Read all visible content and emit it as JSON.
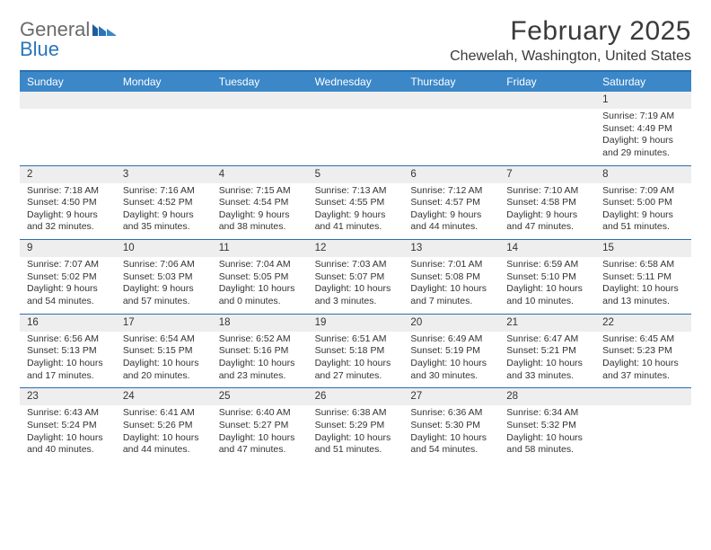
{
  "brand": {
    "name1": "General",
    "name2": "Blue"
  },
  "title": "February 2025",
  "location": "Chewelah, Washington, United States",
  "colors": {
    "header_bg": "#3b87c8",
    "rule": "#2a6fb0",
    "daynum_bg": "#eeeeee",
    "text": "#333333",
    "logo_gray": "#6b6b6b",
    "logo_blue": "#2a75bb"
  },
  "day_names": [
    "Sunday",
    "Monday",
    "Tuesday",
    "Wednesday",
    "Thursday",
    "Friday",
    "Saturday"
  ],
  "weeks": [
    {
      "nums": [
        "",
        "",
        "",
        "",
        "",
        "",
        "1"
      ],
      "cells": [
        null,
        null,
        null,
        null,
        null,
        null,
        {
          "sunrise": "7:19 AM",
          "sunset": "4:49 PM",
          "daylight": "9 hours and 29 minutes."
        }
      ]
    },
    {
      "nums": [
        "2",
        "3",
        "4",
        "5",
        "6",
        "7",
        "8"
      ],
      "cells": [
        {
          "sunrise": "7:18 AM",
          "sunset": "4:50 PM",
          "daylight": "9 hours and 32 minutes."
        },
        {
          "sunrise": "7:16 AM",
          "sunset": "4:52 PM",
          "daylight": "9 hours and 35 minutes."
        },
        {
          "sunrise": "7:15 AM",
          "sunset": "4:54 PM",
          "daylight": "9 hours and 38 minutes."
        },
        {
          "sunrise": "7:13 AM",
          "sunset": "4:55 PM",
          "daylight": "9 hours and 41 minutes."
        },
        {
          "sunrise": "7:12 AM",
          "sunset": "4:57 PM",
          "daylight": "9 hours and 44 minutes."
        },
        {
          "sunrise": "7:10 AM",
          "sunset": "4:58 PM",
          "daylight": "9 hours and 47 minutes."
        },
        {
          "sunrise": "7:09 AM",
          "sunset": "5:00 PM",
          "daylight": "9 hours and 51 minutes."
        }
      ]
    },
    {
      "nums": [
        "9",
        "10",
        "11",
        "12",
        "13",
        "14",
        "15"
      ],
      "cells": [
        {
          "sunrise": "7:07 AM",
          "sunset": "5:02 PM",
          "daylight": "9 hours and 54 minutes."
        },
        {
          "sunrise": "7:06 AM",
          "sunset": "5:03 PM",
          "daylight": "9 hours and 57 minutes."
        },
        {
          "sunrise": "7:04 AM",
          "sunset": "5:05 PM",
          "daylight": "10 hours and 0 minutes."
        },
        {
          "sunrise": "7:03 AM",
          "sunset": "5:07 PM",
          "daylight": "10 hours and 3 minutes."
        },
        {
          "sunrise": "7:01 AM",
          "sunset": "5:08 PM",
          "daylight": "10 hours and 7 minutes."
        },
        {
          "sunrise": "6:59 AM",
          "sunset": "5:10 PM",
          "daylight": "10 hours and 10 minutes."
        },
        {
          "sunrise": "6:58 AM",
          "sunset": "5:11 PM",
          "daylight": "10 hours and 13 minutes."
        }
      ]
    },
    {
      "nums": [
        "16",
        "17",
        "18",
        "19",
        "20",
        "21",
        "22"
      ],
      "cells": [
        {
          "sunrise": "6:56 AM",
          "sunset": "5:13 PM",
          "daylight": "10 hours and 17 minutes."
        },
        {
          "sunrise": "6:54 AM",
          "sunset": "5:15 PM",
          "daylight": "10 hours and 20 minutes."
        },
        {
          "sunrise": "6:52 AM",
          "sunset": "5:16 PM",
          "daylight": "10 hours and 23 minutes."
        },
        {
          "sunrise": "6:51 AM",
          "sunset": "5:18 PM",
          "daylight": "10 hours and 27 minutes."
        },
        {
          "sunrise": "6:49 AM",
          "sunset": "5:19 PM",
          "daylight": "10 hours and 30 minutes."
        },
        {
          "sunrise": "6:47 AM",
          "sunset": "5:21 PM",
          "daylight": "10 hours and 33 minutes."
        },
        {
          "sunrise": "6:45 AM",
          "sunset": "5:23 PM",
          "daylight": "10 hours and 37 minutes."
        }
      ]
    },
    {
      "nums": [
        "23",
        "24",
        "25",
        "26",
        "27",
        "28",
        ""
      ],
      "cells": [
        {
          "sunrise": "6:43 AM",
          "sunset": "5:24 PM",
          "daylight": "10 hours and 40 minutes."
        },
        {
          "sunrise": "6:41 AM",
          "sunset": "5:26 PM",
          "daylight": "10 hours and 44 minutes."
        },
        {
          "sunrise": "6:40 AM",
          "sunset": "5:27 PM",
          "daylight": "10 hours and 47 minutes."
        },
        {
          "sunrise": "6:38 AM",
          "sunset": "5:29 PM",
          "daylight": "10 hours and 51 minutes."
        },
        {
          "sunrise": "6:36 AM",
          "sunset": "5:30 PM",
          "daylight": "10 hours and 54 minutes."
        },
        {
          "sunrise": "6:34 AM",
          "sunset": "5:32 PM",
          "daylight": "10 hours and 58 minutes."
        },
        null
      ]
    }
  ],
  "labels": {
    "sunrise": "Sunrise:",
    "sunset": "Sunset:",
    "daylight": "Daylight:"
  }
}
